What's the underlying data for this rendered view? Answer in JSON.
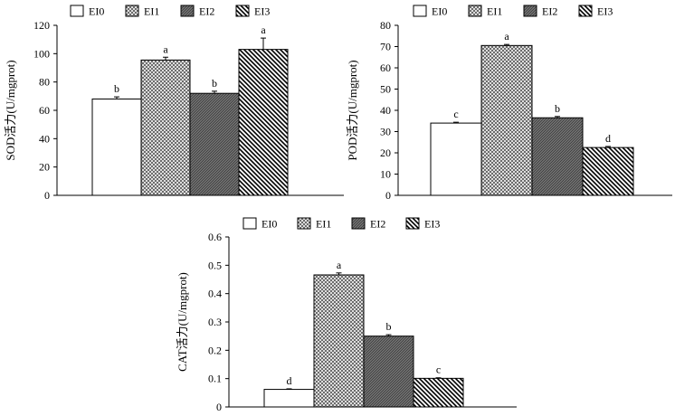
{
  "figure_type": "grouped bar charts with error bars",
  "chart_data": [
    {
      "type": "bar",
      "title": "",
      "xlabel": "",
      "ylabel": "SOD活力(U/mgprot)",
      "ylim": [
        0,
        120
      ],
      "yticks": [
        0,
        20,
        40,
        60,
        80,
        100,
        120
      ],
      "legend": [
        "EI0",
        "EI1",
        "EI2",
        "EI3"
      ],
      "legend_position": "top",
      "categories": [
        "EI0",
        "EI1",
        "EI2",
        "EI3"
      ],
      "values": [
        68,
        95.5,
        72,
        103
      ],
      "errors": [
        1.5,
        2,
        1.5,
        8
      ],
      "significance": [
        "b",
        "a",
        "b",
        "a"
      ],
      "patterns": [
        "white",
        "crosshatch",
        "diagonal-dense",
        "diagonal-wide"
      ]
    },
    {
      "type": "bar",
      "title": "",
      "xlabel": "",
      "ylabel": "POD活力(U/mgprot)",
      "ylim": [
        0,
        80
      ],
      "yticks": [
        0,
        10,
        20,
        30,
        40,
        50,
        60,
        70,
        80
      ],
      "legend": [
        "EI0",
        "EI1",
        "EI2",
        "EI3"
      ],
      "legend_position": "top",
      "categories": [
        "EI0",
        "EI1",
        "EI2",
        "EI3"
      ],
      "values": [
        34,
        70.5,
        36.5,
        22.5
      ],
      "errors": [
        0.4,
        0.5,
        0.6,
        0.5
      ],
      "significance": [
        "c",
        "a",
        "b",
        "d"
      ],
      "patterns": [
        "white",
        "crosshatch",
        "diagonal-dense",
        "diagonal-wide"
      ]
    },
    {
      "type": "bar",
      "title": "",
      "xlabel": "",
      "ylabel": "CAT活力(U/mgprot)",
      "ylim": [
        0,
        0.6
      ],
      "yticks": [
        0,
        0.1,
        0.2,
        0.3,
        0.4,
        0.5,
        0.6
      ],
      "legend": [
        "EI0",
        "EI1",
        "EI2",
        "EI3"
      ],
      "legend_position": "top",
      "categories": [
        "EI0",
        "EI1",
        "EI2",
        "EI3"
      ],
      "values": [
        0.062,
        0.466,
        0.25,
        0.101
      ],
      "errors": [
        0.002,
        0.007,
        0.005,
        0.002
      ],
      "significance": [
        "d",
        "a",
        "b",
        "c"
      ],
      "patterns": [
        "white",
        "crosshatch",
        "diagonal-dense",
        "diagonal-wide"
      ]
    }
  ]
}
